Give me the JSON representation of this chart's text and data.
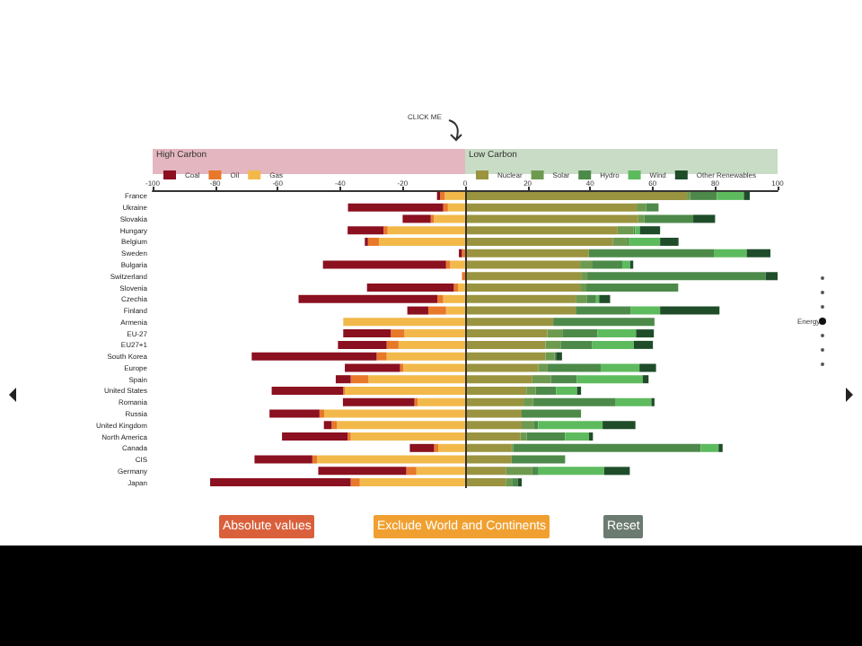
{
  "chart_data": {
    "type": "bar",
    "orientation": "horizontal",
    "stacked": true,
    "legend": "top",
    "grid": false,
    "categories": [
      "France",
      "Ukraine",
      "Slovakia",
      "Hungary",
      "Belgium",
      "Sweden",
      "Bulgaria",
      "Switzerland",
      "Slovenia",
      "Czechia",
      "Finland",
      "Armenia",
      "EU-27",
      "EU27+1",
      "South Korea",
      "Europe",
      "Spain",
      "United States",
      "Romania",
      "Russia",
      "United Kingdom",
      "North America",
      "Canada",
      "CIS",
      "Germany",
      "Japan"
    ],
    "series": [
      {
        "name": "Gas",
        "color": "#f2b94a",
        "values": [
          -6.5,
          -5.5,
          -10,
          -24.8,
          -27.6,
          0,
          -4.8,
          0,
          -2.3,
          -7,
          -6.1,
          -39,
          -19.4,
          -21.3,
          -25.1,
          -19.8,
          -30.9,
          -38.5,
          -15.2,
          -45.1,
          -41,
          -36.6,
          -8.6,
          -47.4,
          -15.6,
          -33.7
        ]
      },
      {
        "name": "Oil",
        "color": "#e8782a",
        "values": [
          -1.5,
          -1.5,
          -1,
          -1.3,
          -3.5,
          -1,
          -1.3,
          -1,
          -1.3,
          -1.9,
          -5.7,
          0,
          -4.4,
          -3.8,
          -3.2,
          -1,
          -5.7,
          -0.5,
          -1,
          -1.5,
          -1.7,
          -1,
          -1.3,
          -1.5,
          -3.2,
          -2.9
        ]
      },
      {
        "name": "Coal",
        "color": "#8b1020",
        "values": [
          -1,
          -30.5,
          -9,
          -11.5,
          -1,
          -1,
          -39.4,
          0,
          -27.8,
          -44.4,
          -6.7,
          0,
          -15.2,
          -15.6,
          -40,
          -17.7,
          -4.8,
          -22.9,
          -22.9,
          -16,
          -2.5,
          -21,
          -7.8,
          -18.5,
          -28.2,
          -45
        ]
      },
      {
        "name": "Nuclear",
        "color": "#9a9440",
        "values": [
          71,
          54.9,
          55.4,
          48.8,
          47.2,
          39.6,
          36.8,
          37.1,
          36.8,
          35.4,
          35.4,
          28.2,
          26.3,
          25.7,
          25.7,
          23.4,
          21.5,
          19.6,
          18.7,
          18.1,
          18.1,
          17.7,
          14.9,
          14.9,
          13,
          13
        ]
      },
      {
        "name": "Solar",
        "color": "#6e9a4f",
        "values": [
          1,
          3,
          2,
          5.1,
          4.8,
          0,
          4,
          2,
          2,
          3.5,
          0,
          0,
          5,
          5,
          2.9,
          3,
          6,
          3,
          3,
          0,
          4,
          2,
          0.5,
          0,
          8.5,
          2
        ]
      },
      {
        "name": "Hydro",
        "color": "#4d8a4a",
        "values": [
          8.6,
          4,
          15.6,
          0.5,
          0.5,
          40,
          9.5,
          57.1,
          29.4,
          3,
          17.5,
          32.4,
          11,
          10,
          0.5,
          17,
          8.3,
          6.5,
          26.5,
          19,
          1.3,
          12.3,
          60,
          17.1,
          2,
          1.8
        ]
      },
      {
        "name": "Wind",
        "color": "#5dbb5d",
        "values": [
          8.6,
          0,
          0,
          1.5,
          9.9,
          10.5,
          2.5,
          0,
          0,
          1,
          9.5,
          0,
          12.4,
          13.3,
          0,
          12.4,
          21,
          6.7,
          11.4,
          0,
          20.6,
          7.6,
          5.7,
          0,
          21,
          0
        ]
      },
      {
        "name": "Other Renewables",
        "color": "#1f4d2a",
        "values": [
          1.9,
          0,
          7,
          6.5,
          5.9,
          7.6,
          1,
          4.4,
          0,
          3.5,
          19,
          0,
          5.7,
          6.1,
          1.9,
          5.3,
          1.9,
          1.3,
          1,
          0,
          10.5,
          1.3,
          1.3,
          0,
          8.2,
          1.3
        ]
      }
    ],
    "xlim": [
      -100,
      100
    ],
    "xticks": [
      -100,
      -80,
      -60,
      -40,
      -20,
      0,
      20,
      40,
      60,
      80,
      100
    ],
    "ref_lines": [
      {
        "axis": "x",
        "value": 0,
        "label": null,
        "color": "#333333"
      }
    ],
    "annotations": [
      "CLICK ME",
      "High Carbon",
      "Low Carbon",
      "Absolute values",
      "Exclude World and Continents",
      "Reset",
      "Energy"
    ]
  }
}
